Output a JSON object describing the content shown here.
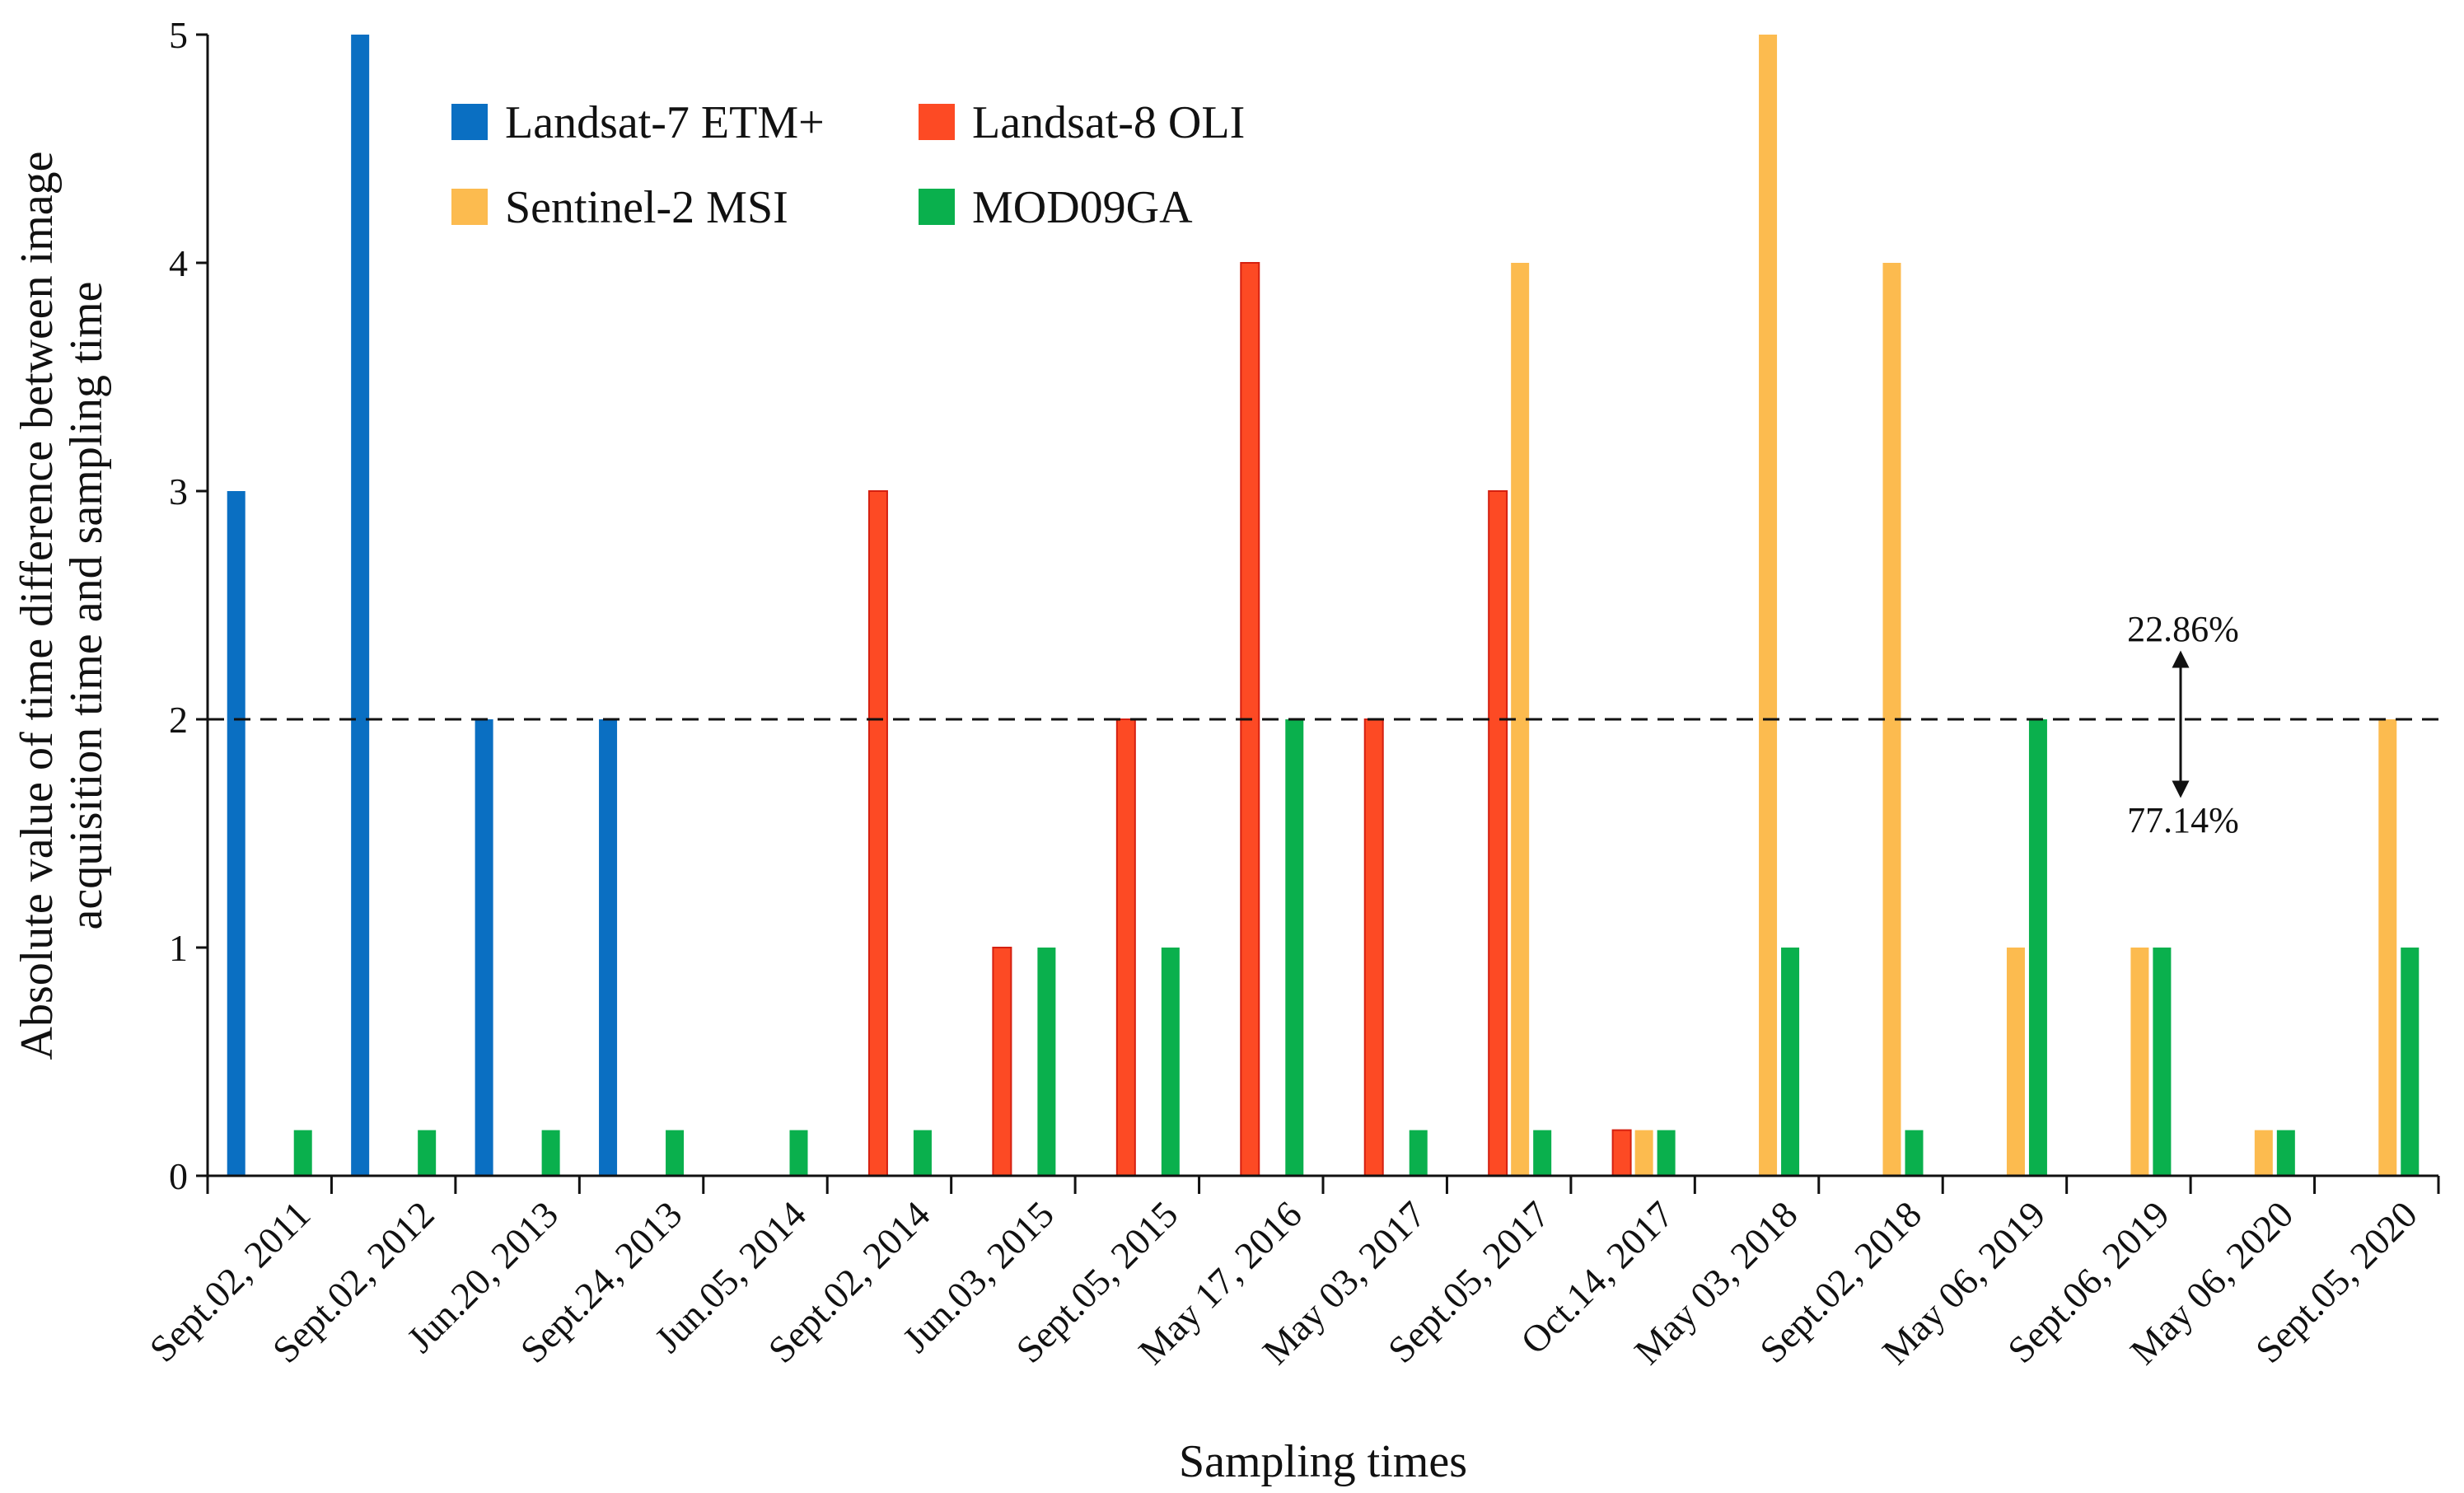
{
  "chart_data": {
    "type": "bar",
    "xlabel": "Sampling times",
    "ylabel_lines": [
      "Absolute value of time difference between image",
      "acquisition time and sampling time"
    ],
    "ylim": [
      0,
      5
    ],
    "yticks": [
      "0",
      "1",
      "2",
      "3",
      "4",
      "5"
    ],
    "grid": false,
    "legend_position": "top-left",
    "categories": [
      "Sept.02, 2011",
      "Sept.02, 2012",
      "Jun.20, 2013",
      "Sept.24, 2013",
      "Jun.05, 2014",
      "Sept.02, 2014",
      "Jun.03, 2015",
      "Sept.05, 2015",
      "May 17, 2016",
      "May 03, 2017",
      "Sept.05, 2017",
      "Oct.14, 2017",
      "May 03, 2018",
      "Sept.02, 2018",
      "May 06, 2019",
      "Sept.06, 2019",
      "May 06, 2020",
      "Sept.05, 2020"
    ],
    "series": [
      {
        "name": "Landsat-7 ETM+",
        "color": "#0a6fc2",
        "values": [
          3,
          5,
          2,
          2,
          null,
          null,
          null,
          null,
          null,
          null,
          null,
          null,
          null,
          null,
          null,
          null,
          null,
          null
        ]
      },
      {
        "name": "Landsat-8 OLI",
        "color": "#fd4a24",
        "values": [
          null,
          null,
          null,
          null,
          null,
          3,
          1,
          2,
          4,
          2,
          3,
          0.2,
          null,
          null,
          null,
          null,
          null,
          null
        ]
      },
      {
        "name": "Sentinel-2 MSI",
        "color": "#fcbb4f",
        "values": [
          null,
          null,
          null,
          null,
          null,
          null,
          null,
          null,
          null,
          null,
          4,
          0.2,
          5,
          4,
          1,
          1,
          0.2,
          2
        ]
      },
      {
        "name": "MOD09GA",
        "color": "#0ab04d",
        "values": [
          0.2,
          0.2,
          0.2,
          0.2,
          0.2,
          0.2,
          1,
          1,
          2,
          0.2,
          0.2,
          0.2,
          1,
          0.2,
          2,
          1,
          0.2,
          1
        ]
      }
    ],
    "threshold_line": {
      "value": 2,
      "style": "dashed"
    },
    "annotations": {
      "above": "22.86%",
      "below": "77.14%"
    }
  }
}
